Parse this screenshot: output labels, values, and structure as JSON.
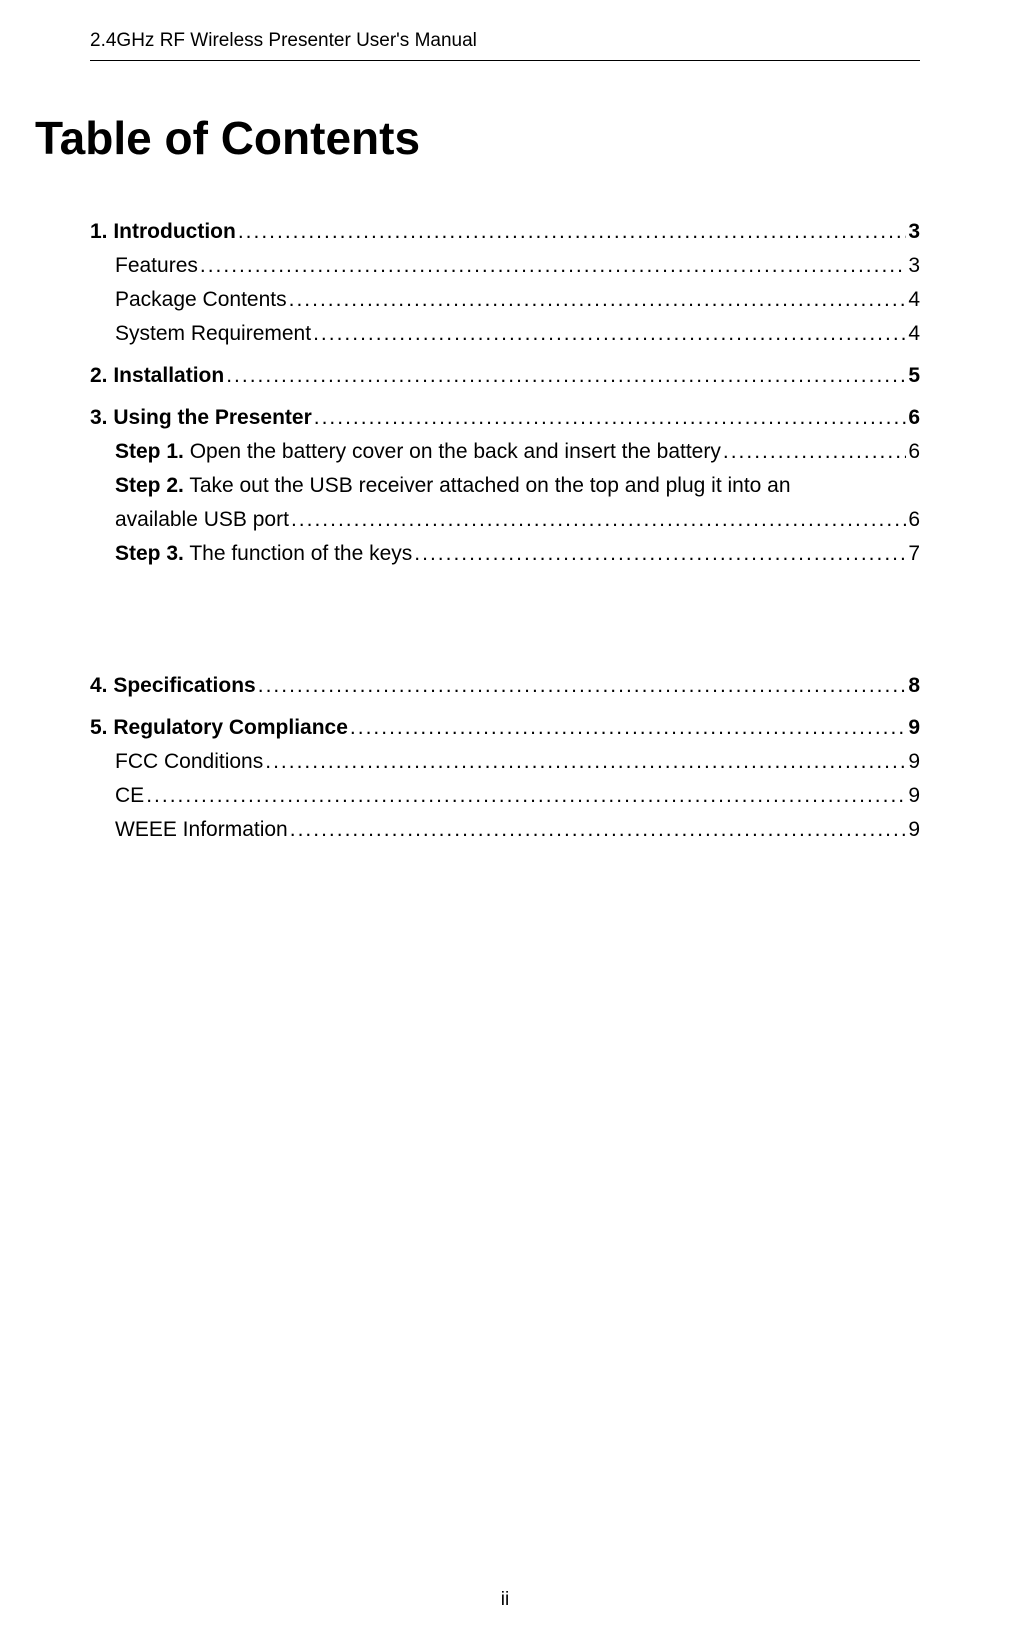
{
  "header": "2.4GHz RF Wireless Presenter User's Manual",
  "title": "Table of Contents",
  "sections": [
    {
      "title": "1. Introduction",
      "page": "3",
      "subs": [
        {
          "title": "Features",
          "page": "3"
        },
        {
          "title": "Package Contents",
          "page": "4"
        },
        {
          "title": "System Requirement",
          "page": "4"
        }
      ]
    },
    {
      "title": "2. Installation",
      "page": "5",
      "subs": []
    },
    {
      "title": "3. Using the Presenter",
      "page": "6",
      "subs": [
        {
          "bold": "Step 1.",
          "title": " Open the battery cover on the back and insert the battery",
          "page": "6"
        },
        {
          "bold": "Step 2.",
          "title": " Take out the USB receiver attached on the top and plug it into an",
          "line2title": "available USB port  ",
          "page": "6",
          "multiline": true
        },
        {
          "bold": "Step 3.",
          "title": " The function of the keys",
          "page": "7"
        }
      ]
    },
    {
      "title": "4. Specifications",
      "page": "8",
      "subs": [],
      "spacerBefore": true
    },
    {
      "title": "5. Regulatory Compliance",
      "page": "9",
      "subs": [
        {
          "title": "FCC Conditions",
          "page": "9"
        },
        {
          "title": "CE",
          "page": "9"
        },
        {
          "title": "WEEE Information",
          "page": "9"
        }
      ]
    }
  ],
  "pageNumber": "ii",
  "dots": "........................................................................................................................................................................"
}
